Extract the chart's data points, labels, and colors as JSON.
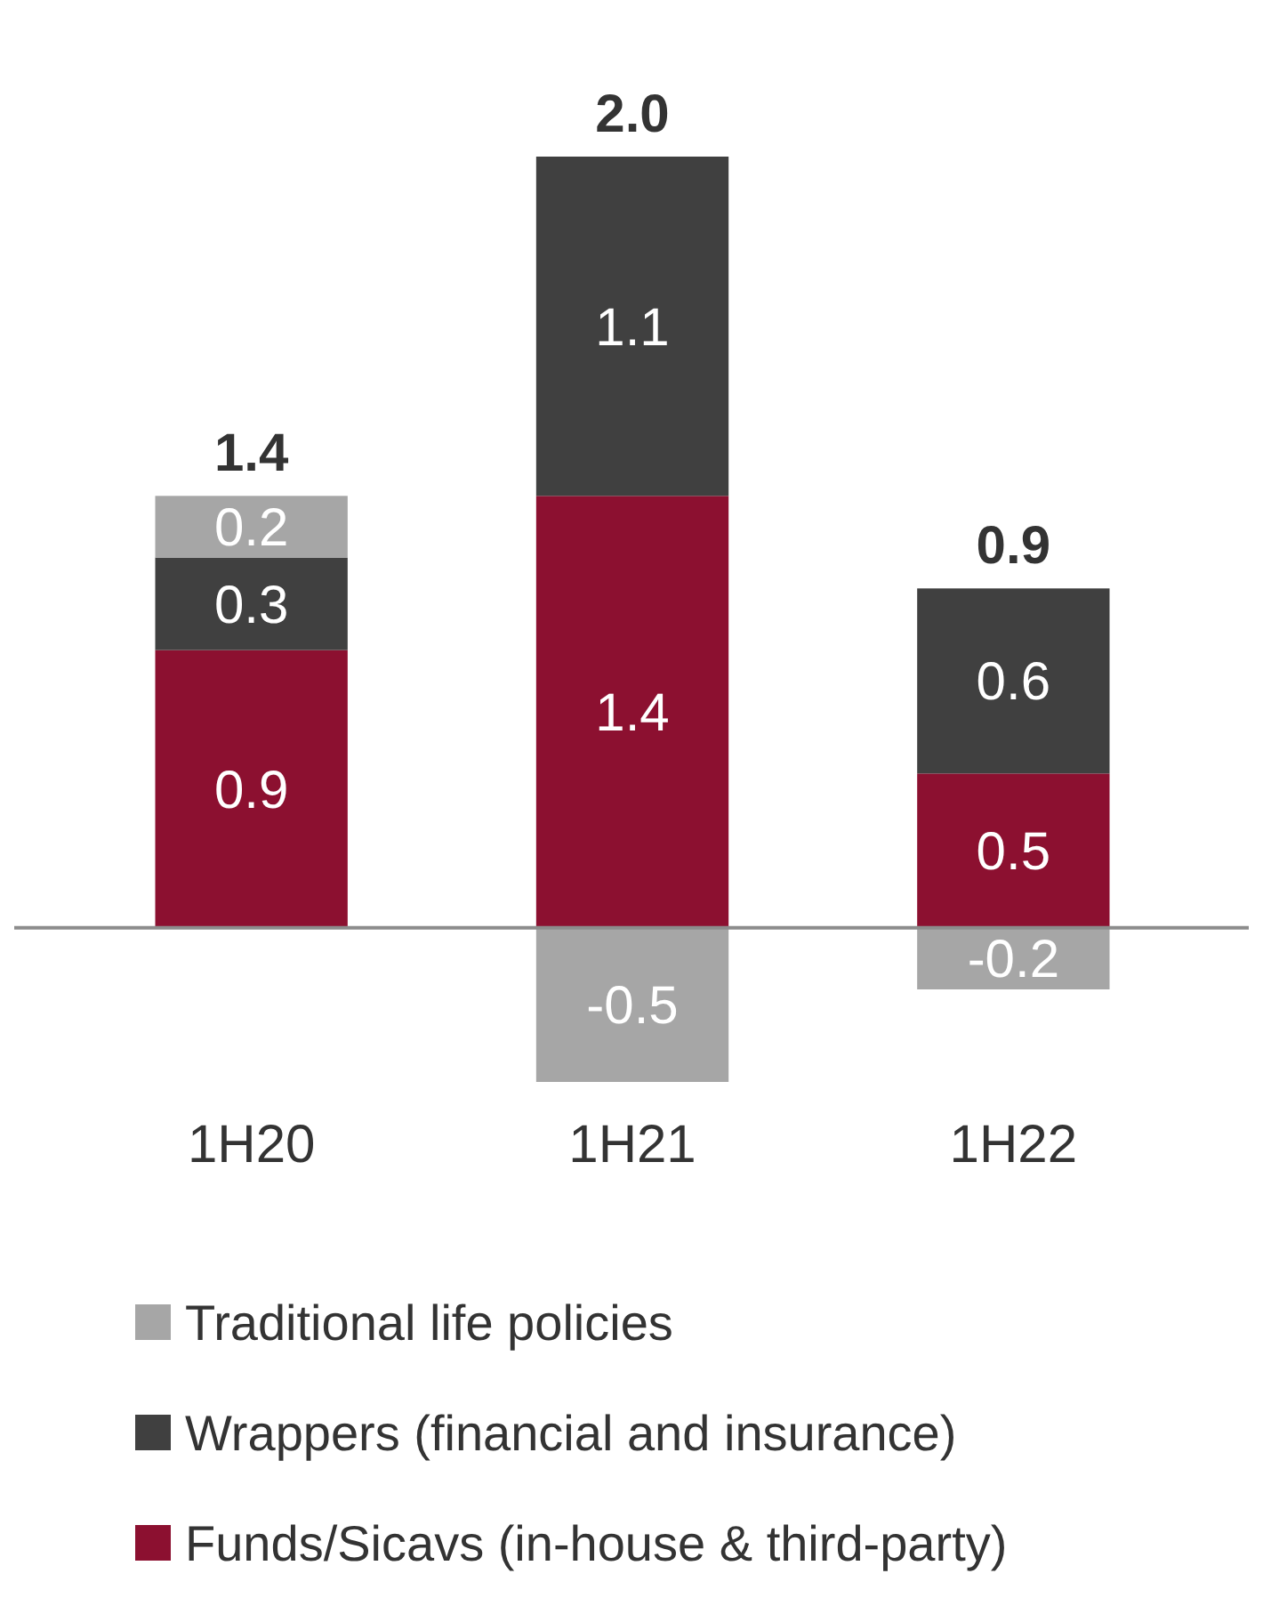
{
  "chart_data": {
    "type": "bar",
    "stacked": true,
    "categories": [
      "1H20",
      "1H21",
      "1H22"
    ],
    "series": [
      {
        "name": "Funds/Sicavs (in-house & third-party)",
        "color": "#8c1030",
        "values": [
          0.9,
          1.4,
          0.5
        ]
      },
      {
        "name": "Wrappers (financial and insurance)",
        "color": "#404040",
        "values": [
          0.3,
          1.1,
          0.6
        ]
      },
      {
        "name": "Traditional life policies",
        "color": "#a6a6a6",
        "values": [
          0.2,
          -0.5,
          -0.2
        ]
      }
    ],
    "totals": [
      "1.4",
      "2.0",
      "0.9"
    ],
    "data_labels": true,
    "legend": "bottom"
  }
}
